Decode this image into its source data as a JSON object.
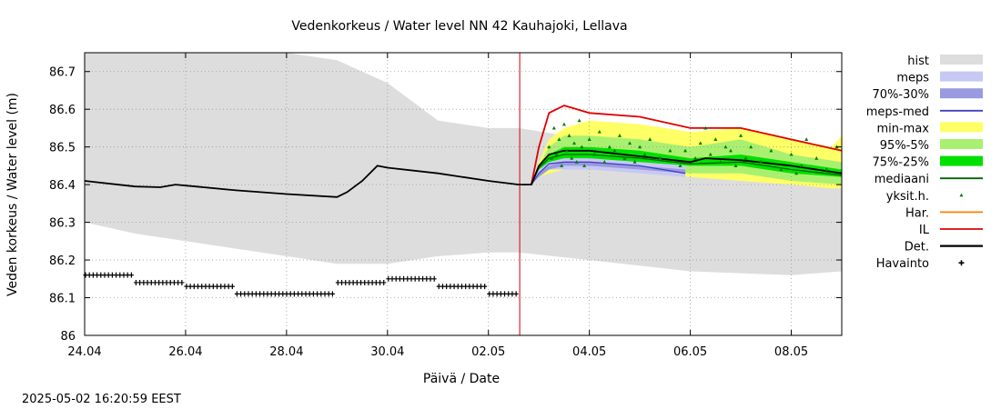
{
  "chart_data": {
    "type": "line",
    "title": "Vedenkorkeus / Water level   NN 42 Kauhajoki, Lellava",
    "xlabel": "Päivä / Date",
    "ylabel": "Veden korkeus / Water level (m)",
    "xlim": [
      0,
      15
    ],
    "ylim": [
      86.0,
      86.75
    ],
    "x_ticks": [
      {
        "x": 0,
        "label": "24.04"
      },
      {
        "x": 2,
        "label": "26.04"
      },
      {
        "x": 4,
        "label": "28.04"
      },
      {
        "x": 6,
        "label": "30.04"
      },
      {
        "x": 8,
        "label": "02.05"
      },
      {
        "x": 10,
        "label": "04.05"
      },
      {
        "x": 12,
        "label": "06.05"
      },
      {
        "x": 14,
        "label": "08.05"
      }
    ],
    "y_ticks": [
      86.0,
      86.1,
      86.2,
      86.3,
      86.4,
      86.5,
      86.6,
      86.7
    ],
    "y_tick_labels": [
      "86",
      "86.1",
      "86.2",
      "86.3",
      "86.4",
      "86.5",
      "86.6",
      "86.7"
    ],
    "forecast_start": 8.62,
    "timestamp": "2025-05-02 16:20:59 EEST",
    "colors": {
      "hist": "#dddddd",
      "meps": "#c8c8f5",
      "meps_70_30": "#9a9ae0",
      "meps_med": "#4040c0",
      "minmax": "#ffff66",
      "p95_5": "#aaf070",
      "p75_25": "#00e000",
      "mediaani": "#006400",
      "yksit": "#008000",
      "har": "#ff8000",
      "il": "#e00000",
      "det": "#000000",
      "havainto": "#000000",
      "forecast_line": "#cc0000"
    },
    "legend": [
      {
        "key": "hist",
        "label": "hist",
        "style": "band"
      },
      {
        "key": "meps",
        "label": "meps",
        "style": "band"
      },
      {
        "key": "meps_70_30",
        "label": "70%-30%",
        "style": "band"
      },
      {
        "key": "meps_med",
        "label": "meps-med",
        "style": "line"
      },
      {
        "key": "minmax",
        "label": "min-max",
        "style": "band"
      },
      {
        "key": "p95_5",
        "label": "95%-5%",
        "style": "band"
      },
      {
        "key": "p75_25",
        "label": "75%-25%",
        "style": "band"
      },
      {
        "key": "mediaani",
        "label": "mediaani",
        "style": "line"
      },
      {
        "key": "yksit",
        "label": "yksit.h.",
        "style": "dot"
      },
      {
        "key": "har",
        "label": "Har.",
        "style": "line"
      },
      {
        "key": "il",
        "label": "IL",
        "style": "line"
      },
      {
        "key": "det",
        "label": "Det.",
        "style": "thickline"
      },
      {
        "key": "havainto",
        "label": "Havainto",
        "style": "plus"
      }
    ],
    "series": [
      {
        "name": "hist",
        "type": "band",
        "x": [
          0,
          1,
          2,
          3,
          4,
          5,
          6,
          7,
          8,
          8.6,
          10,
          12,
          14,
          15
        ],
        "upper": [
          86.75,
          86.75,
          86.75,
          86.75,
          86.75,
          86.73,
          86.67,
          86.57,
          86.55,
          86.55,
          86.52,
          86.47,
          86.42,
          86.41
        ],
        "lower": [
          86.3,
          86.27,
          86.25,
          86.23,
          86.21,
          86.19,
          86.19,
          86.21,
          86.22,
          86.22,
          86.2,
          86.17,
          86.16,
          86.17
        ]
      },
      {
        "name": "min-max",
        "type": "band",
        "x": [
          8.85,
          9.0,
          9.2,
          9.5,
          10.0,
          11.0,
          12.0,
          13.0,
          14.0,
          14.8,
          15.0
        ],
        "upper": [
          86.4,
          86.46,
          86.52,
          86.55,
          86.57,
          86.56,
          86.54,
          86.55,
          86.52,
          86.5,
          86.53
        ],
        "lower": [
          86.4,
          86.42,
          86.43,
          86.44,
          86.44,
          86.43,
          86.42,
          86.41,
          86.4,
          86.39,
          86.39
        ]
      },
      {
        "name": "95%-5%",
        "type": "band",
        "x": [
          8.85,
          9.0,
          9.2,
          9.5,
          10.0,
          11.0,
          12.0,
          13.0,
          14.0,
          15.0
        ],
        "upper": [
          86.4,
          86.45,
          86.5,
          86.53,
          86.53,
          86.52,
          86.5,
          86.52,
          86.48,
          86.46
        ],
        "lower": [
          86.4,
          86.43,
          86.45,
          86.45,
          86.45,
          86.44,
          86.43,
          86.43,
          86.41,
          86.4
        ]
      },
      {
        "name": "meps",
        "type": "band",
        "x": [
          8.85,
          9.0,
          9.2,
          9.5,
          10.0,
          11.0,
          11.9
        ],
        "upper": [
          86.4,
          86.44,
          86.47,
          86.48,
          86.48,
          86.47,
          86.45
        ],
        "lower": [
          86.4,
          86.42,
          86.44,
          86.44,
          86.44,
          86.43,
          86.42
        ]
      },
      {
        "name": "75%-25%",
        "type": "band",
        "x": [
          8.85,
          9.0,
          9.2,
          9.5,
          10.0,
          11.0,
          12.0,
          13.0,
          14.0,
          15.0
        ],
        "upper": [
          86.4,
          86.45,
          86.48,
          86.5,
          86.5,
          86.49,
          86.47,
          86.48,
          86.46,
          86.44
        ],
        "lower": [
          86.4,
          86.44,
          86.46,
          86.47,
          86.47,
          86.46,
          86.45,
          86.45,
          86.43,
          86.42
        ]
      },
      {
        "name": "70%-30%",
        "type": "band",
        "x": [
          8.85,
          9.0,
          9.2,
          9.5,
          10.0,
          11.0,
          11.9
        ],
        "upper": [
          86.4,
          86.43,
          86.45,
          86.46,
          86.46,
          86.45,
          86.44
        ],
        "lower": [
          86.4,
          86.42,
          86.44,
          86.45,
          86.45,
          86.44,
          86.43
        ]
      },
      {
        "name": "IL",
        "type": "line",
        "x": [
          8.85,
          9.0,
          9.2,
          9.5,
          10.0,
          11.0,
          12.0,
          13.0,
          14.0,
          15.0
        ],
        "y": [
          86.4,
          86.5,
          86.59,
          86.61,
          86.59,
          86.58,
          86.55,
          86.55,
          86.52,
          86.49
        ]
      },
      {
        "name": "meps-med",
        "type": "line",
        "x": [
          8.85,
          9.0,
          9.2,
          9.5,
          10.0,
          11.0,
          11.9
        ],
        "y": [
          86.4,
          86.43,
          86.455,
          86.46,
          86.46,
          86.45,
          86.43
        ]
      },
      {
        "name": "mediaani",
        "type": "line",
        "x": [
          8.85,
          9.0,
          9.2,
          9.5,
          10.0,
          11.0,
          12.0,
          13.0,
          14.0,
          15.0
        ],
        "y": [
          86.4,
          86.445,
          86.47,
          86.48,
          86.48,
          86.47,
          86.455,
          86.46,
          86.44,
          86.425
        ]
      },
      {
        "name": "Det.",
        "type": "line",
        "x": [
          0,
          1,
          1.5,
          1.8,
          2.2,
          3,
          4,
          5,
          5.2,
          5.5,
          5.8,
          6,
          7,
          8,
          8.6,
          8.85,
          9.0,
          9.2,
          9.5,
          10.0,
          11.0,
          12.0,
          12.3,
          13.0,
          14.0,
          15.0
        ],
        "y": [
          86.41,
          86.395,
          86.393,
          86.4,
          86.395,
          86.385,
          86.375,
          86.367,
          86.38,
          86.41,
          86.45,
          86.445,
          86.43,
          86.41,
          86.4,
          86.4,
          86.45,
          86.48,
          86.49,
          86.49,
          86.475,
          86.46,
          86.47,
          86.465,
          86.45,
          86.43
        ]
      },
      {
        "name": "Havainto",
        "type": "step",
        "x": [
          0,
          1,
          2,
          3,
          5,
          6,
          7,
          8,
          8.6
        ],
        "y": [
          86.16,
          86.14,
          86.13,
          86.11,
          86.14,
          86.15,
          86.13,
          86.11,
          86.11
        ]
      },
      {
        "name": "yksit.h.",
        "type": "scatter",
        "x": [
          9.1,
          9.2,
          9.25,
          9.3,
          9.35,
          9.4,
          9.45,
          9.5,
          9.55,
          9.6,
          9.65,
          9.7,
          9.75,
          9.8,
          9.85,
          9.9,
          10.0,
          10.1,
          10.2,
          10.3,
          10.4,
          10.5,
          10.6,
          10.7,
          10.8,
          10.9,
          11.0,
          11.1,
          11.2,
          11.4,
          11.6,
          11.8,
          11.9,
          12.1,
          12.2,
          12.3,
          12.4,
          12.5,
          12.6,
          12.7,
          12.8,
          12.9,
          13.0,
          13.1,
          13.2,
          13.4,
          13.6,
          13.8,
          14.0,
          14.1,
          14.2,
          14.3,
          14.5,
          14.7,
          14.9
        ],
        "y": [
          86.46,
          86.5,
          86.47,
          86.55,
          86.48,
          86.52,
          86.45,
          86.56,
          86.49,
          86.53,
          86.47,
          86.51,
          86.46,
          86.57,
          86.5,
          86.45,
          86.52,
          86.48,
          86.54,
          86.46,
          86.5,
          86.49,
          86.53,
          86.47,
          86.51,
          86.46,
          86.5,
          86.48,
          86.52,
          86.47,
          86.49,
          86.45,
          86.49,
          86.47,
          86.51,
          86.55,
          86.48,
          86.52,
          86.46,
          86.5,
          86.49,
          86.45,
          86.53,
          86.47,
          86.5,
          86.46,
          86.49,
          86.44,
          86.48,
          86.43,
          86.45,
          86.52,
          86.47,
          86.44,
          86.5
        ]
      }
    ]
  }
}
